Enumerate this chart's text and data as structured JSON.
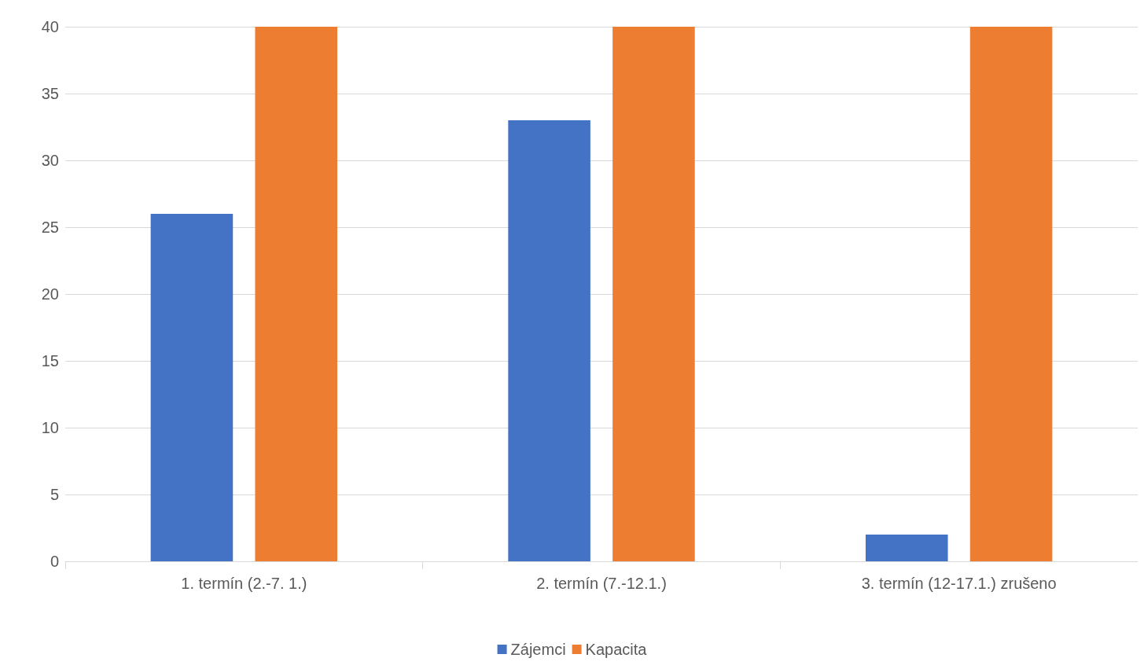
{
  "chart_data": {
    "type": "bar",
    "categories": [
      "1. termín (2.-7. 1.)",
      "2. termín (7.-12.1.)",
      "3. termín (12-17.1.) zrušeno"
    ],
    "series": [
      {
        "name": "Zájemci",
        "color": "#4472c4",
        "values": [
          26,
          33,
          2
        ]
      },
      {
        "name": "Kapacita",
        "color": "#ed7d31",
        "values": [
          40,
          40,
          40
        ]
      }
    ],
    "ylim": [
      0,
      40
    ],
    "yticks": [
      0,
      5,
      10,
      15,
      20,
      25,
      30,
      35,
      40
    ],
    "grid": "y",
    "legend": "bottom"
  }
}
